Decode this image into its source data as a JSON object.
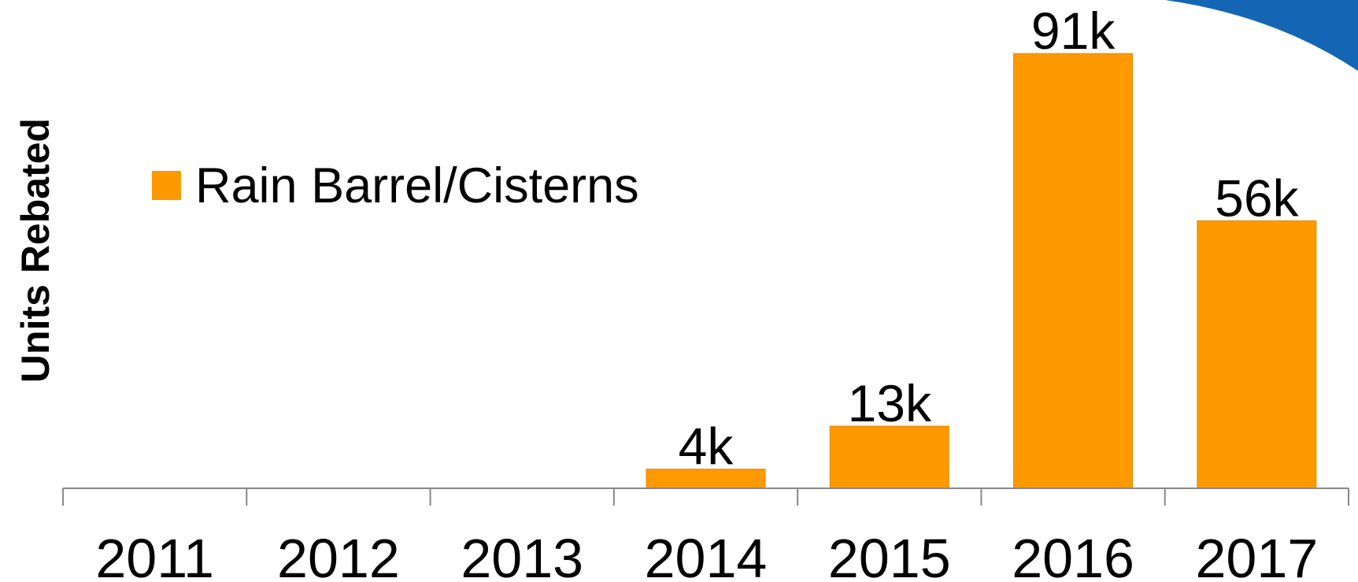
{
  "chart_data": {
    "type": "bar",
    "categories": [
      "2011",
      "2012",
      "2013",
      "2014",
      "2015",
      "2016",
      "2017"
    ],
    "series": [
      {
        "name": "Rain Barrel/Cisterns",
        "values": [
          0,
          0,
          0,
          4000,
          13000,
          91000,
          56000
        ],
        "data_labels": [
          "",
          "",
          "",
          "4k",
          "13k",
          "91k",
          "56k"
        ],
        "color": "#FF9900"
      }
    ],
    "title": "",
    "xlabel": "",
    "ylabel": "Units Rebated",
    "ylim": [
      0,
      91000
    ],
    "grid": false,
    "legend_position": "top-left"
  },
  "colors": {
    "bar": "#FF9900",
    "bar_border": "#E08600",
    "axis": "#888888",
    "decoration": "#1565B5"
  }
}
